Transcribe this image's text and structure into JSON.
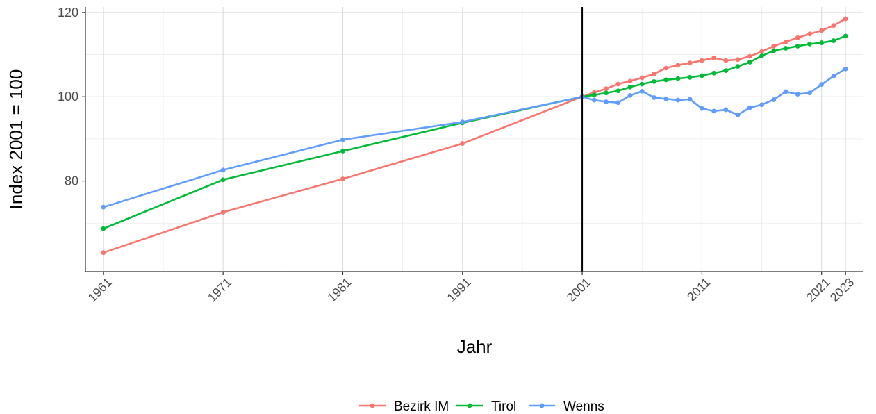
{
  "chart_data": {
    "type": "line",
    "xlabel": "Jahr",
    "ylabel": "Index 2001 = 100",
    "xlim": [
      1959.5,
      2024.5
    ],
    "ylim": [
      58.5,
      121.3
    ],
    "x_ticks": [
      1961,
      1971,
      1981,
      1991,
      2001,
      2011,
      2021,
      2023
    ],
    "y_ticks": [
      80,
      100,
      120
    ],
    "y_minor_ticks": [
      70,
      90,
      110
    ],
    "grid": true,
    "legend_position": "bottom",
    "reference_line": {
      "x": 2001,
      "color": "#000000"
    },
    "series": [
      {
        "name": "Bezirk IM",
        "color": "#F8766D",
        "x": [
          1961,
          1971,
          1981,
          1991,
          2001,
          2002,
          2003,
          2004,
          2005,
          2006,
          2007,
          2008,
          2009,
          2010,
          2011,
          2012,
          2013,
          2014,
          2015,
          2016,
          2017,
          2018,
          2019,
          2020,
          2021,
          2022,
          2023
        ],
        "values": [
          63.0,
          72.6,
          80.5,
          88.9,
          100.0,
          101.0,
          101.9,
          103.0,
          103.7,
          104.5,
          105.4,
          106.8,
          107.5,
          108.0,
          108.6,
          109.2,
          108.6,
          108.8,
          109.6,
          110.7,
          112.0,
          113.0,
          114.0,
          114.9,
          115.7,
          116.9,
          118.5
        ]
      },
      {
        "name": "Tirol",
        "color": "#00BA38",
        "x": [
          1961,
          1971,
          1981,
          1991,
          2001,
          2002,
          2003,
          2004,
          2005,
          2006,
          2007,
          2008,
          2009,
          2010,
          2011,
          2012,
          2013,
          2014,
          2015,
          2016,
          2017,
          2018,
          2019,
          2020,
          2021,
          2022,
          2023
        ],
        "values": [
          68.7,
          80.3,
          87.1,
          93.8,
          100.0,
          100.4,
          100.9,
          101.4,
          102.3,
          103.0,
          103.6,
          104.0,
          104.3,
          104.6,
          105.0,
          105.6,
          106.2,
          107.2,
          108.2,
          109.7,
          110.9,
          111.5,
          112.0,
          112.5,
          112.8,
          113.3,
          114.4
        ]
      },
      {
        "name": "Wenns",
        "color": "#619CFF",
        "x": [
          1961,
          1971,
          1981,
          1991,
          2001,
          2002,
          2003,
          2004,
          2005,
          2006,
          2007,
          2008,
          2009,
          2010,
          2011,
          2012,
          2013,
          2014,
          2015,
          2016,
          2017,
          2018,
          2019,
          2020,
          2021,
          2022,
          2023
        ],
        "values": [
          73.8,
          82.6,
          89.8,
          94.0,
          100.0,
          99.2,
          98.8,
          98.6,
          100.3,
          101.3,
          99.8,
          99.5,
          99.2,
          99.4,
          97.2,
          96.6,
          96.9,
          95.7,
          97.4,
          98.1,
          99.3,
          101.2,
          100.6,
          100.9,
          102.9,
          104.9,
          106.6
        ]
      }
    ]
  }
}
